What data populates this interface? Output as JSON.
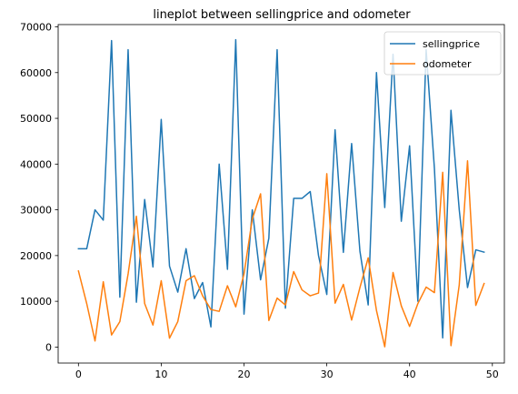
{
  "chart_data": {
    "type": "line",
    "title": "lineplot between sellingprice and odometer",
    "xlabel": "",
    "ylabel": "",
    "xlim": [
      -2.45,
      51.45
    ],
    "ylim": [
      -3500,
      70500
    ],
    "xticks": [
      0,
      10,
      20,
      30,
      40,
      50
    ],
    "yticks": [
      0,
      10000,
      20000,
      30000,
      40000,
      50000,
      60000,
      70000
    ],
    "xtick_labels": [
      "0",
      "10",
      "20",
      "30",
      "40",
      "50"
    ],
    "ytick_labels": [
      "0",
      "10000",
      "20000",
      "30000",
      "40000",
      "50000",
      "60000",
      "70000"
    ],
    "grid": false,
    "legend_position": "top-right",
    "x": [
      0,
      1,
      2,
      3,
      4,
      5,
      6,
      7,
      8,
      9,
      10,
      11,
      12,
      13,
      14,
      15,
      16,
      17,
      18,
      19,
      20,
      21,
      22,
      23,
      24,
      25,
      26,
      27,
      28,
      29,
      30,
      31,
      32,
      33,
      34,
      35,
      36,
      37,
      38,
      39,
      40,
      41,
      42,
      43,
      44,
      45,
      46,
      47,
      48,
      49
    ],
    "series": [
      {
        "name": "sellingprice",
        "color": "#1f77b4",
        "values": [
          21500,
          21500,
          30000,
          27750,
          67000,
          10900,
          65000,
          9800,
          32250,
          17500,
          49750,
          17700,
          12000,
          21500,
          10600,
          14100,
          4400,
          40000,
          17000,
          67200,
          7200,
          30000,
          14700,
          23800,
          65000,
          8500,
          32500,
          32500,
          34000,
          20000,
          11500,
          47500,
          20700,
          44500,
          21000,
          9200,
          60000,
          30500,
          64000,
          27500,
          44000,
          10000,
          65000,
          39000,
          2000,
          51750,
          30000,
          13000,
          21250,
          20750
        ]
      },
      {
        "name": "odometer",
        "color": "#ff7f0e",
        "values": [
          16639,
          9500,
          1331,
          14282,
          2641,
          5554,
          16000,
          28600,
          9500,
          4809,
          14500,
          1949,
          5559,
          14500,
          15600,
          11200,
          8200,
          7800,
          13400,
          8800,
          16000,
          28000,
          33500,
          5800,
          10700,
          9200,
          16500,
          12500,
          11200,
          11800,
          37900,
          9600,
          13700,
          5900,
          13000,
          19500,
          8000,
          60,
          16300,
          9000,
          4500,
          9500,
          13100,
          11900,
          38200,
          300,
          13600,
          40700,
          9100,
          13900
        ]
      }
    ]
  }
}
